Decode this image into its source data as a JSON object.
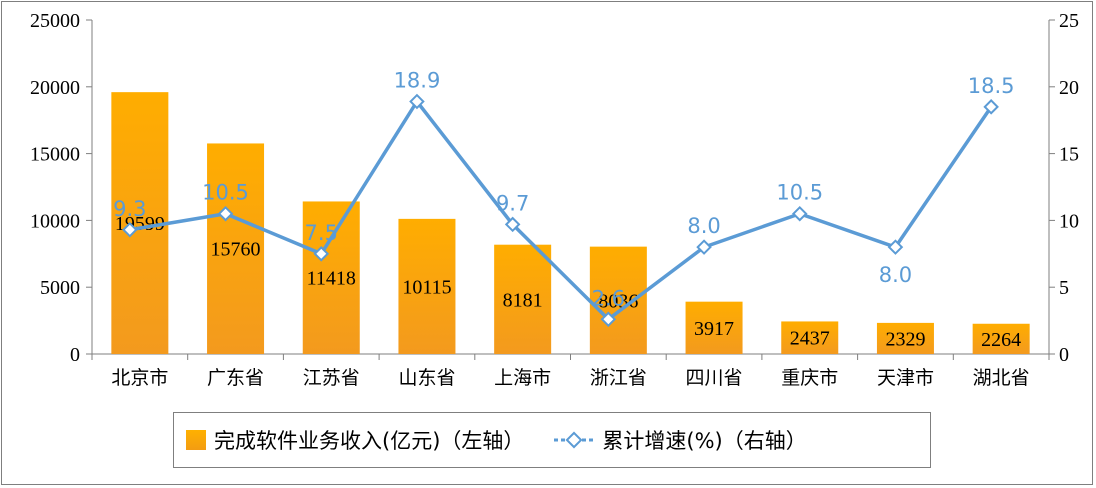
{
  "chart_data": {
    "type": "bar",
    "categories": [
      "北京市",
      "广东省",
      "江苏省",
      "山东省",
      "上海市",
      "浙江省",
      "四川省",
      "重庆市",
      "天津市",
      "湖北省"
    ],
    "series": [
      {
        "name": "完成软件业务收入(亿元)（左轴）",
        "type": "bar",
        "axis": "left",
        "color": "#f5a000",
        "values": [
          19599,
          15760,
          11418,
          10115,
          8181,
          8036,
          3917,
          2437,
          2329,
          2264
        ]
      },
      {
        "name": "累计增速(%)（右轴）",
        "type": "line",
        "axis": "right",
        "color": "#5b9bd5",
        "values": [
          9.3,
          10.5,
          7.5,
          18.9,
          9.7,
          2.6,
          8.0,
          10.5,
          8.0,
          18.5
        ]
      }
    ],
    "bar_labels": [
      "19599",
      "15760",
      "11418",
      "10115",
      "8181",
      "8036",
      "3917",
      "2437",
      "2329",
      "2264"
    ],
    "line_labels": [
      "9.3",
      "10.5",
      "7.5",
      "18.9",
      "9.7",
      "2.6",
      "8.0",
      "10.5",
      "8.0",
      "18.5"
    ],
    "y_left": {
      "ylim": [
        0,
        25000
      ],
      "ticks": [
        "0",
        "5000",
        "10000",
        "15000",
        "20000",
        "25000"
      ]
    },
    "y_right": {
      "ylim": [
        0,
        25
      ],
      "ticks": [
        "0",
        "5",
        "10",
        "15",
        "20",
        "25"
      ]
    },
    "grid": false,
    "legend_position": "bottom"
  },
  "legend": {
    "bar_label": "完成软件业务收入(亿元)（左轴）",
    "line_label": "累计增速(%)（右轴）"
  }
}
